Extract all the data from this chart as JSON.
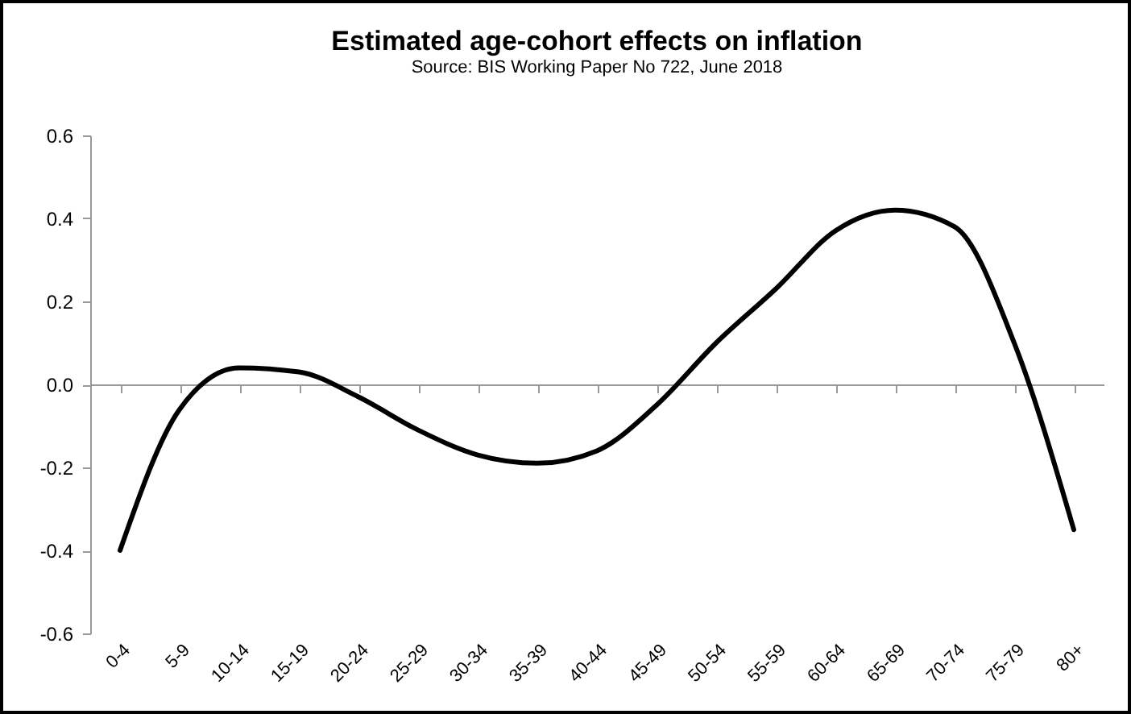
{
  "chart_data": {
    "type": "line",
    "title": "Estimated age-cohort effects on inflation",
    "subtitle": "Source: BIS Working Paper No 722, June 2018",
    "categories": [
      "0-4",
      "5-9",
      "10-14",
      "15-19",
      "20-24",
      "25-29",
      "30-34",
      "35-39",
      "40-44",
      "45-49",
      "50-54",
      "55-59",
      "60-64",
      "65-69",
      "70-74",
      "75-79",
      "80+"
    ],
    "series": [
      {
        "color": "#000000",
        "values": [
          -0.4,
          -0.06,
          0.04,
          0.03,
          -0.03,
          -0.11,
          -0.17,
          -0.19,
          -0.16,
          -0.05,
          0.1,
          0.23,
          0.37,
          0.42,
          0.38,
          0.1,
          -0.35
        ]
      }
    ],
    "ylim": [
      -0.6,
      0.6
    ],
    "yticks": [
      {
        "value": 0.6,
        "label": "0.6"
      },
      {
        "value": 0.4,
        "label": "0.4"
      },
      {
        "value": 0.2,
        "label": "0.2"
      },
      {
        "value": 0,
        "label": "0.0"
      },
      {
        "value": -0.2,
        "label": "-0.2"
      },
      {
        "value": -0.4,
        "label": "-0.4"
      },
      {
        "value": -0.6,
        "label": "-0.6"
      }
    ],
    "marker": "none",
    "line_style": "solid"
  }
}
